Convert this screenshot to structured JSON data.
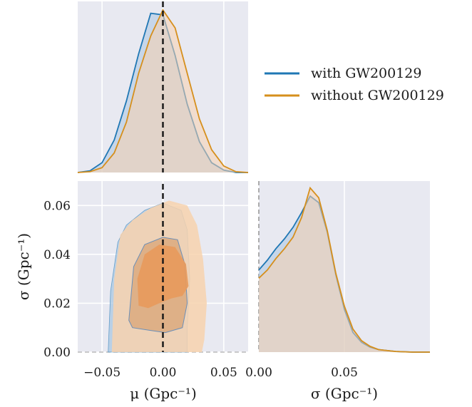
{
  "chart_data": {
    "type": "corner",
    "legend": {
      "placement": "top-right",
      "entries": [
        {
          "label": "with GW200129",
          "color": "#1f77b4"
        },
        {
          "label": "without GW200129",
          "color": "#d68f1c"
        }
      ]
    },
    "colors": {
      "with": "#1f77b4",
      "with_fill": "#a9c7e2",
      "without": "#d68f1c",
      "without_fill_outer": "#f7d2ae",
      "without_fill_inner": "#e89a5c",
      "background": "#e8e9f1",
      "truth_line": "#1a1a1a"
    },
    "mu_marginal": {
      "xlim": [
        -0.07,
        0.07
      ],
      "truth": 0.0,
      "x": [
        -0.07,
        -0.06,
        -0.05,
        -0.04,
        -0.03,
        -0.02,
        -0.01,
        0.0,
        0.01,
        0.02,
        0.03,
        0.04,
        0.05,
        0.06,
        0.07
      ],
      "series": [
        {
          "name": "with GW200129",
          "y": [
            0.0,
            0.01,
            0.06,
            0.2,
            0.44,
            0.73,
            0.98,
            0.97,
            0.72,
            0.42,
            0.19,
            0.06,
            0.015,
            0.0,
            0.0
          ]
        },
        {
          "name": "without GW200129",
          "y": [
            0.0,
            0.005,
            0.03,
            0.12,
            0.31,
            0.61,
            0.84,
            1.0,
            0.89,
            0.61,
            0.33,
            0.14,
            0.04,
            0.005,
            0.0
          ]
        }
      ]
    },
    "sigma_marginal": {
      "xlim": [
        0.0,
        0.1
      ],
      "xticks": [
        0.0,
        0.05
      ],
      "xticklabels": [
        "0.00",
        "0.05"
      ],
      "xlabel": "σ (Gpc⁻¹)",
      "x": [
        0.0,
        0.005,
        0.01,
        0.015,
        0.02,
        0.025,
        0.03,
        0.035,
        0.04,
        0.045,
        0.05,
        0.055,
        0.06,
        0.065,
        0.07,
        0.08,
        0.09,
        0.1
      ],
      "series": [
        {
          "name": "with GW200129",
          "y": [
            0.5,
            0.56,
            0.63,
            0.69,
            0.76,
            0.85,
            0.95,
            0.91,
            0.73,
            0.47,
            0.26,
            0.12,
            0.06,
            0.03,
            0.015,
            0.004,
            0.0,
            0.0
          ]
        },
        {
          "name": "without GW200129",
          "y": [
            0.45,
            0.5,
            0.57,
            0.63,
            0.7,
            0.82,
            1.0,
            0.94,
            0.74,
            0.48,
            0.28,
            0.14,
            0.07,
            0.035,
            0.015,
            0.004,
            0.0,
            0.0
          ]
        }
      ]
    },
    "joint": {
      "xlabel": "μ (Gpc⁻¹)",
      "ylabel": "σ (Gpc⁻¹)",
      "xlim": [
        -0.07,
        0.07
      ],
      "ylim": [
        0.0,
        0.07
      ],
      "xticks": [
        -0.05,
        0.0,
        0.05
      ],
      "xticklabels": [
        "−0.05",
        "0.00",
        "0.05"
      ],
      "yticks": [
        0.0,
        0.02,
        0.04,
        0.06
      ],
      "yticklabels": [
        "0.00",
        "0.02",
        "0.04",
        "0.06"
      ],
      "truth_mu": 0.0,
      "contours": {
        "with_outer": [
          [
            -0.045,
            0.0
          ],
          [
            -0.043,
            0.025
          ],
          [
            -0.037,
            0.045
          ],
          [
            -0.03,
            0.052
          ],
          [
            -0.015,
            0.058
          ],
          [
            0.0,
            0.061
          ],
          [
            0.015,
            0.058
          ],
          [
            0.02,
            0.05
          ],
          [
            0.022,
            0.03
          ],
          [
            0.02,
            0.01
          ],
          [
            0.02,
            0.0
          ]
        ],
        "with_inner": [
          [
            -0.028,
            0.013
          ],
          [
            -0.024,
            0.035
          ],
          [
            -0.015,
            0.044
          ],
          [
            0.0,
            0.047
          ],
          [
            0.012,
            0.046
          ],
          [
            0.018,
            0.036
          ],
          [
            0.02,
            0.02
          ],
          [
            0.016,
            0.01
          ],
          [
            0.002,
            0.008
          ],
          [
            -0.012,
            0.009
          ],
          [
            -0.025,
            0.01
          ]
        ],
        "without_outer": [
          [
            -0.042,
            0.0
          ],
          [
            -0.04,
            0.03
          ],
          [
            -0.035,
            0.048
          ],
          [
            -0.025,
            0.054
          ],
          [
            -0.01,
            0.059
          ],
          [
            0.005,
            0.062
          ],
          [
            0.02,
            0.06
          ],
          [
            0.028,
            0.052
          ],
          [
            0.033,
            0.038
          ],
          [
            0.036,
            0.02
          ],
          [
            0.034,
            0.005
          ],
          [
            0.032,
            0.0
          ]
        ],
        "without_inner": [
          [
            -0.02,
            0.019
          ],
          [
            -0.021,
            0.03
          ],
          [
            -0.015,
            0.04
          ],
          [
            -0.003,
            0.044
          ],
          [
            0.01,
            0.043
          ],
          [
            0.019,
            0.036
          ],
          [
            0.021,
            0.027
          ],
          [
            0.016,
            0.023
          ],
          [
            0.007,
            0.022
          ],
          [
            -0.003,
            0.02
          ],
          [
            -0.012,
            0.018
          ]
        ]
      }
    }
  }
}
